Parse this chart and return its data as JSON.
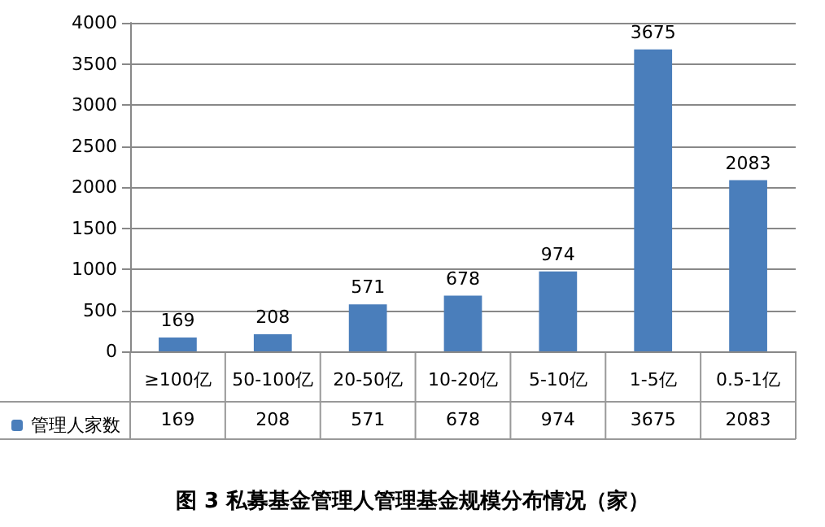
{
  "chart_data": {
    "type": "bar",
    "title": "图 3 私募基金管理人管理基金规模分布情况（家）",
    "categories": [
      "≥100亿",
      "50-100亿",
      "20-50亿",
      "10-20亿",
      "5-10亿",
      "1-5亿",
      "0.5-1亿"
    ],
    "series": [
      {
        "name": "管理人家数",
        "color": "#4a7ebb",
        "values": [
          169,
          208,
          571,
          678,
          974,
          3675,
          2083
        ]
      }
    ],
    "ylim": [
      0,
      4000
    ],
    "yticks": [
      0,
      500,
      1000,
      1500,
      2000,
      2500,
      3000,
      3500,
      4000
    ],
    "grid": "y",
    "data_labels": true,
    "legend": "bottom left",
    "annotations": [
      "169",
      "208",
      "571",
      "678",
      "974",
      "3675",
      "2083"
    ]
  }
}
